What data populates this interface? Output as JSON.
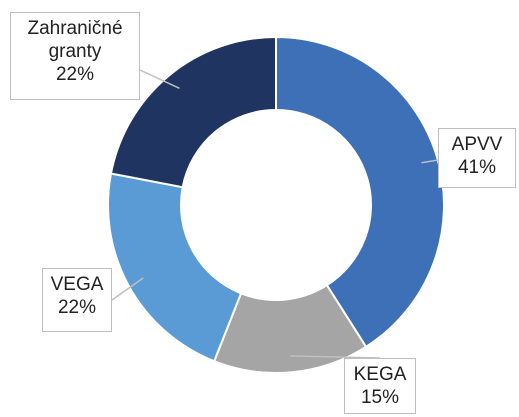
{
  "chart_data": {
    "type": "donut",
    "categories": [
      "APVV",
      "KEGA",
      "VEGA",
      "Zahraničné granty"
    ],
    "values": [
      41,
      15,
      22,
      22
    ],
    "value_labels": [
      "41%",
      "15%",
      "22%",
      "22%"
    ],
    "colors": [
      "#3e70b8",
      "#a5a5a5",
      "#5a9bd5",
      "#1f3461"
    ]
  }
}
